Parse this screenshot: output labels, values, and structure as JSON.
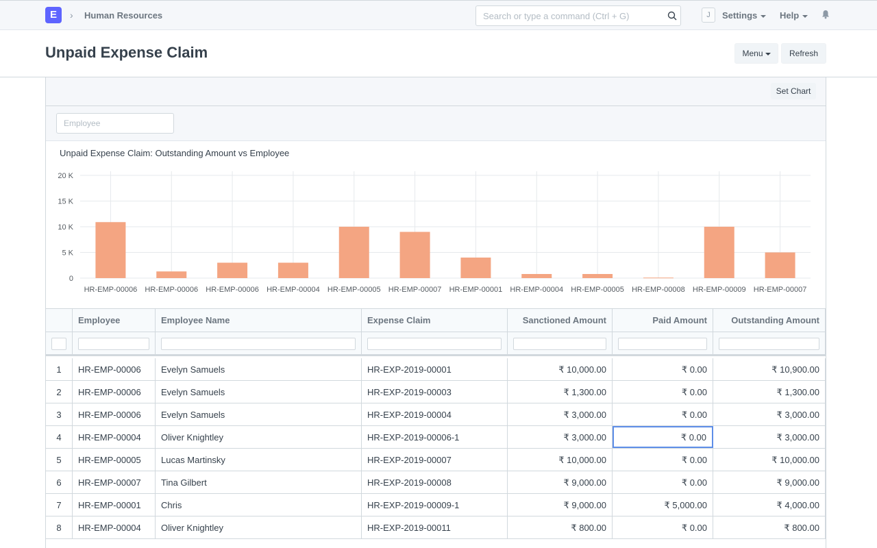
{
  "navbar": {
    "logo_letter": "E",
    "breadcrumb": "Human Resources",
    "search_placeholder": "Search or type a command (Ctrl + G)",
    "avatar_letter": "J",
    "settings_label": "Settings",
    "help_label": "Help"
  },
  "page": {
    "title": "Unpaid Expense Claim",
    "menu_label": "Menu",
    "refresh_label": "Refresh"
  },
  "report": {
    "set_chart_label": "Set Chart",
    "employee_filter_placeholder": "Employee"
  },
  "chart_data": {
    "type": "bar",
    "title": "Unpaid Expense Claim: Outstanding Amount vs Employee",
    "categories": [
      "HR-EMP-00006",
      "HR-EMP-00006",
      "HR-EMP-00006",
      "HR-EMP-00004",
      "HR-EMP-00005",
      "HR-EMP-00007",
      "HR-EMP-00001",
      "HR-EMP-00004",
      "HR-EMP-00005",
      "HR-EMP-00008",
      "HR-EMP-00009",
      "HR-EMP-00007"
    ],
    "values": [
      10900,
      1300,
      3000,
      3000,
      10000,
      9000,
      4000,
      800,
      800,
      100,
      10000,
      5000
    ],
    "yticks": [
      "0",
      "5 K",
      "10 K",
      "15 K",
      "20 K"
    ],
    "ylim": [
      0,
      20000
    ],
    "color": "#f4a582",
    "grid": true
  },
  "table": {
    "columns": [
      "",
      "Employee",
      "Employee Name",
      "Expense Claim",
      "Sanctioned Amount",
      "Paid Amount",
      "Outstanding Amount"
    ],
    "rows": [
      [
        "1",
        "HR-EMP-00006",
        "Evelyn Samuels",
        "HR-EXP-2019-00001",
        "₹ 10,000.00",
        "₹ 0.00",
        "₹ 10,900.00"
      ],
      [
        "2",
        "HR-EMP-00006",
        "Evelyn Samuels",
        "HR-EXP-2019-00003",
        "₹ 1,300.00",
        "₹ 0.00",
        "₹ 1,300.00"
      ],
      [
        "3",
        "HR-EMP-00006",
        "Evelyn Samuels",
        "HR-EXP-2019-00004",
        "₹ 3,000.00",
        "₹ 0.00",
        "₹ 3,000.00"
      ],
      [
        "4",
        "HR-EMP-00004",
        "Oliver Knightley",
        "HR-EXP-2019-00006-1",
        "₹ 3,000.00",
        "₹ 0.00",
        "₹ 3,000.00"
      ],
      [
        "5",
        "HR-EMP-00005",
        "Lucas Martinsky",
        "HR-EXP-2019-00007",
        "₹ 10,000.00",
        "₹ 0.00",
        "₹ 10,000.00"
      ],
      [
        "6",
        "HR-EMP-00007",
        "Tina Gilbert",
        "HR-EXP-2019-00008",
        "₹ 9,000.00",
        "₹ 0.00",
        "₹ 9,000.00"
      ],
      [
        "7",
        "HR-EMP-00001",
        "Chris",
        "HR-EXP-2019-00009-1",
        "₹ 9,000.00",
        "₹ 5,000.00",
        "₹ 4,000.00"
      ],
      [
        "8",
        "HR-EMP-00004",
        "Oliver Knightley",
        "HR-EXP-2019-00011",
        "₹ 800.00",
        "₹ 0.00",
        "₹ 800.00"
      ]
    ]
  }
}
